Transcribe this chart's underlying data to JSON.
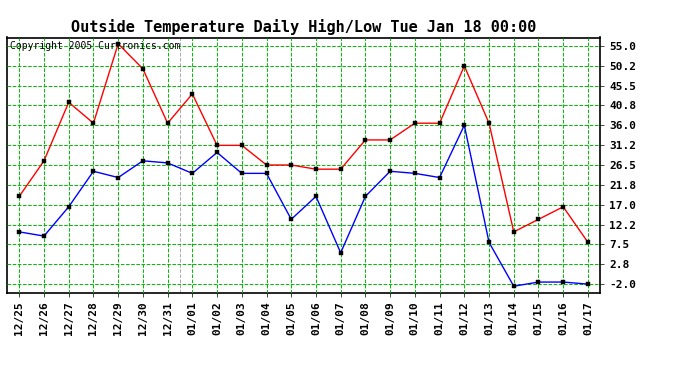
{
  "title": "Outside Temperature Daily High/Low Tue Jan 18 00:00",
  "copyright": "Copyright 2005 Curtronics.com",
  "x_labels": [
    "12/25",
    "12/26",
    "12/27",
    "12/28",
    "12/29",
    "12/30",
    "12/31",
    "01/01",
    "01/02",
    "01/03",
    "01/04",
    "01/05",
    "01/06",
    "01/07",
    "01/08",
    "01/09",
    "01/10",
    "01/11",
    "01/12",
    "01/13",
    "01/14",
    "01/15",
    "01/16",
    "01/17"
  ],
  "high_values": [
    19.0,
    27.5,
    41.5,
    36.5,
    55.5,
    49.5,
    36.5,
    43.5,
    31.2,
    31.2,
    26.5,
    26.5,
    25.5,
    25.5,
    32.5,
    32.5,
    36.5,
    36.5,
    50.2,
    36.5,
    10.5,
    13.5,
    16.5,
    8.0
  ],
  "low_values": [
    10.5,
    9.5,
    16.5,
    25.0,
    23.5,
    27.5,
    27.0,
    24.5,
    29.5,
    24.5,
    24.5,
    13.5,
    19.0,
    5.5,
    19.0,
    25.0,
    24.5,
    23.5,
    36.0,
    8.0,
    -2.5,
    -1.5,
    -1.5,
    -2.0
  ],
  "high_color": "#ff0000",
  "low_color": "#0000ff",
  "bg_color": "#ffffff",
  "plot_bg_color": "#ffffff",
  "grid_color": "#00bb00",
  "y_ticks": [
    -2.0,
    2.8,
    7.5,
    12.2,
    17.0,
    21.8,
    26.5,
    31.2,
    36.0,
    40.8,
    45.5,
    50.2,
    55.0
  ],
  "y_min": -4.0,
  "y_max": 57.0,
  "title_fontsize": 11,
  "tick_fontsize": 8,
  "marker": "s",
  "marker_size": 3
}
